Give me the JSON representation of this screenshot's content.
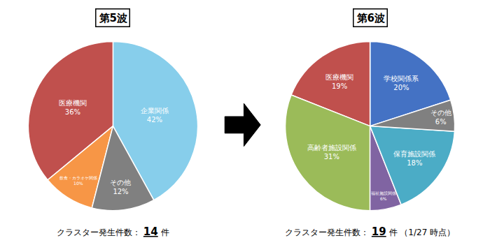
{
  "chart_data": [
    {
      "type": "pie",
      "title": "第5波",
      "categories": [
        "企業関係",
        "医療機関",
        "飲食・カラオケ関係",
        "その他"
      ],
      "values": [
        42,
        36,
        10,
        12
      ],
      "value_labels": [
        "42%",
        "36%",
        "10%",
        "12%"
      ],
      "data_labels": true,
      "colors": [
        "#87CEEB",
        "#C0504D",
        "#F79646",
        "#808080"
      ],
      "annotations": [
        "クラスター発生件数：",
        "14",
        "件"
      ]
    },
    {
      "type": "pie",
      "title": "第6波",
      "categories": [
        "学校関係系",
        "医療機関",
        "高齢者施設関係",
        "福祉施設関係",
        "保育施設関係",
        "その他"
      ],
      "values": [
        20,
        19,
        31,
        6,
        18,
        6
      ],
      "value_labels": [
        "20%",
        "19%",
        "31%",
        "6%",
        "18%",
        "6%"
      ],
      "data_labels": true,
      "colors": [
        "#4472C4",
        "#C0504D",
        "#9BBB59",
        "#8064A2",
        "#4BACC6",
        "#808080"
      ],
      "annotations": [
        "クラスター発生件数：",
        "19",
        "件",
        "（1/27 時点）"
      ]
    }
  ]
}
